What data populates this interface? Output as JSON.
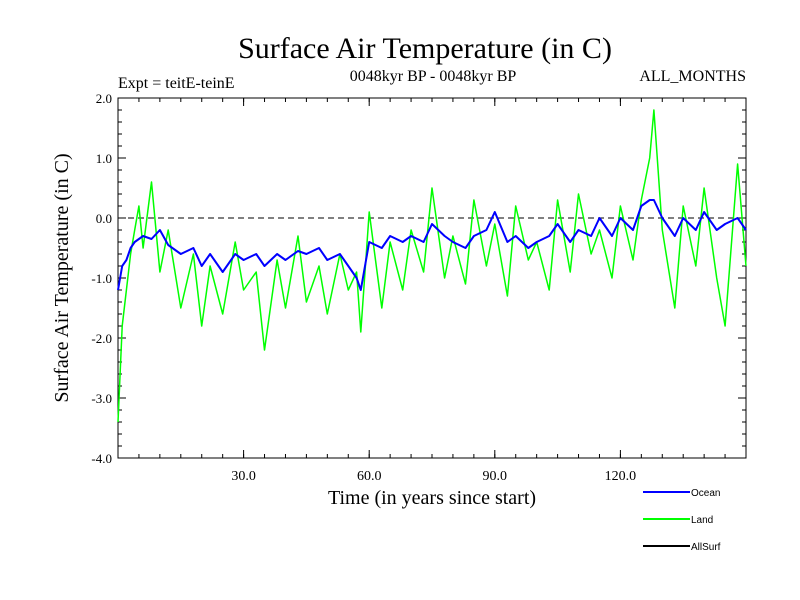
{
  "chart_data": {
    "type": "line",
    "title": "Surface Air Temperature (in C)",
    "subtitle": "0048kyr BP - 0048kyr BP",
    "experiment_label": "Expt = teitE-teinE",
    "months_label": "ALL_MONTHS",
    "xlabel": "Time (in years since start)",
    "ylabel": "Surface Air Temperature (in C)",
    "xlim": [
      0,
      150
    ],
    "ylim": [
      -4.0,
      2.0
    ],
    "x_ticks": [
      30,
      60,
      90,
      120
    ],
    "x_tick_labels": [
      "30.0",
      "60.0",
      "90.0",
      "120.0"
    ],
    "y_ticks": [
      2,
      1,
      0,
      -1,
      -2,
      -3,
      -4
    ],
    "y_tick_labels": [
      "2.0",
      "1.0",
      "0.0",
      "-1.0",
      "-2.0",
      "-3.0",
      "-4.0"
    ],
    "reference_line": {
      "y": 0,
      "style": "dashed"
    },
    "legend_position": "bottom-right",
    "series": [
      {
        "name": "Land",
        "color": "#00ff00",
        "x": [
          0,
          1,
          2,
          3,
          4,
          5,
          6,
          8,
          10,
          12,
          15,
          18,
          20,
          22,
          25,
          28,
          30,
          33,
          35,
          38,
          40,
          43,
          45,
          48,
          50,
          53,
          55,
          57,
          58,
          60,
          63,
          65,
          68,
          70,
          73,
          75,
          78,
          80,
          83,
          85,
          88,
          90,
          93,
          95,
          98,
          100,
          103,
          105,
          108,
          110,
          113,
          115,
          118,
          120,
          123,
          125,
          127,
          128,
          130,
          133,
          135,
          138,
          140,
          143,
          145,
          148,
          150
        ],
        "y": [
          -3.4,
          -1.8,
          -1.2,
          -0.6,
          -0.2,
          0.2,
          -0.5,
          0.6,
          -0.9,
          -0.2,
          -1.5,
          -0.6,
          -1.8,
          -0.8,
          -1.6,
          -0.4,
          -1.2,
          -0.9,
          -2.2,
          -0.7,
          -1.5,
          -0.3,
          -1.4,
          -0.8,
          -1.6,
          -0.6,
          -1.2,
          -0.9,
          -1.9,
          0.1,
          -1.5,
          -0.4,
          -1.2,
          -0.2,
          -0.9,
          0.5,
          -1.0,
          -0.3,
          -1.1,
          0.3,
          -0.8,
          -0.1,
          -1.3,
          0.2,
          -0.7,
          -0.4,
          -1.2,
          0.3,
          -0.9,
          0.4,
          -0.6,
          -0.2,
          -1.0,
          0.2,
          -0.7,
          0.3,
          1.0,
          1.8,
          -0.2,
          -1.5,
          0.2,
          -0.8,
          0.5,
          -1.0,
          -1.8,
          0.9,
          -0.8
        ]
      },
      {
        "name": "Ocean",
        "color": "#0000ff",
        "x": [
          0,
          1,
          2,
          3,
          4,
          5,
          6,
          8,
          10,
          12,
          15,
          18,
          20,
          22,
          25,
          28,
          30,
          33,
          35,
          38,
          40,
          43,
          45,
          48,
          50,
          53,
          55,
          57,
          58,
          60,
          63,
          65,
          68,
          70,
          73,
          75,
          78,
          80,
          83,
          85,
          88,
          90,
          93,
          95,
          98,
          100,
          103,
          105,
          108,
          110,
          113,
          115,
          118,
          120,
          123,
          125,
          127,
          128,
          130,
          133,
          135,
          138,
          140,
          143,
          145,
          148,
          150
        ],
        "y": [
          -1.2,
          -0.8,
          -0.7,
          -0.5,
          -0.4,
          -0.35,
          -0.3,
          -0.35,
          -0.2,
          -0.45,
          -0.6,
          -0.5,
          -0.8,
          -0.6,
          -0.9,
          -0.6,
          -0.7,
          -0.6,
          -0.8,
          -0.6,
          -0.7,
          -0.55,
          -0.6,
          -0.5,
          -0.7,
          -0.6,
          -0.8,
          -1.0,
          -1.2,
          -0.4,
          -0.5,
          -0.3,
          -0.4,
          -0.3,
          -0.4,
          -0.1,
          -0.3,
          -0.4,
          -0.5,
          -0.3,
          -0.2,
          0.1,
          -0.4,
          -0.3,
          -0.5,
          -0.4,
          -0.3,
          -0.1,
          -0.4,
          -0.2,
          -0.3,
          0.0,
          -0.3,
          0.0,
          -0.2,
          0.2,
          0.3,
          0.3,
          0.0,
          -0.3,
          0.0,
          -0.2,
          0.1,
          -0.2,
          -0.1,
          0.0,
          -0.2
        ]
      },
      {
        "name": "AllSurf",
        "color": "#000000",
        "x": [],
        "y": []
      }
    ]
  }
}
